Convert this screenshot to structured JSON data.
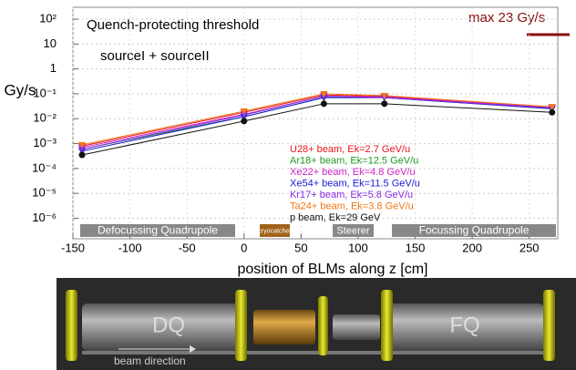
{
  "chart_data": {
    "type": "line",
    "title": "Quench-protecting threshold",
    "subtitle": "sourceI + sourceII",
    "annotation": "max 23 Gy/s",
    "x_label": "position of BLMs along z [cm]",
    "y_label": "Gy/s",
    "log_y": true,
    "grid": true,
    "legend_position": "center",
    "x": [
      -142,
      0,
      70,
      123,
      270
    ],
    "xlim": [
      -150,
      275
    ],
    "xticks": [
      {
        "value": -150,
        "label": "-150"
      },
      {
        "value": -100,
        "label": "-100"
      },
      {
        "value": -50,
        "label": "-50"
      },
      0,
      50,
      100,
      150,
      200,
      250
    ],
    "ylim": [
      1.5e-07,
      300
    ],
    "yticks": [
      {
        "value": 1e-06,
        "label": "10⁻⁶"
      },
      {
        "value": 1e-05,
        "label": "10⁻⁵"
      },
      {
        "value": 0.0001,
        "label": "10⁻⁴"
      },
      {
        "value": 0.001,
        "label": "10⁻³"
      },
      {
        "value": 0.01,
        "label": "10⁻²"
      },
      {
        "value": 0.1,
        "label": "10⁻¹"
      },
      1,
      10,
      {
        "value": 100,
        "label": "10²"
      }
    ],
    "series": [
      {
        "name": "U28+ beam, Ek=2.7 GeV/u",
        "color": "#e8141e",
        "marker": "triangle",
        "values": [
          0.0008,
          0.018,
          0.09,
          0.08,
          0.03
        ]
      },
      {
        "name": "Ar18+ beam, Ek=12.5 GeV/u",
        "color": "#1f9a1f",
        "marker": "triangle",
        "values": [
          0.0006,
          0.012,
          0.07,
          0.07,
          0.025
        ]
      },
      {
        "name": "Xe22+ beam, Ek=4.8 GeV/u",
        "color": "#d01fc8",
        "marker": "triangle",
        "values": [
          0.0007,
          0.015,
          0.08,
          0.075,
          0.028
        ]
      },
      {
        "name": "Xe54+ beam, Ek=11.5 GeV/u",
        "color": "#1a1ad8",
        "marker": "triangle",
        "values": [
          0.0005,
          0.012,
          0.07,
          0.07,
          0.025
        ]
      },
      {
        "name": "Kr17+ beam, Ek=5.8 GeV/u",
        "color": "#8a2be2",
        "marker": "triangle",
        "values": [
          0.0006,
          0.014,
          0.08,
          0.07,
          0.027
        ]
      },
      {
        "name": "Ta24+ beam, Ek=3.8 GeV/u",
        "color": "#f07818",
        "marker": "triangle",
        "values": [
          0.0009,
          0.02,
          0.1,
          0.085,
          0.03
        ]
      },
      {
        "name": "p beam, Ek=29 GeV",
        "color": "#111111",
        "marker": "circle",
        "values": [
          0.00035,
          0.008,
          0.04,
          0.04,
          0.018
        ]
      }
    ],
    "elements": [
      "Defocussing Quadrupole",
      "cryocatcher",
      "Steerer",
      "Focussing Quadrupole"
    ],
    "magnet_labels": [
      "DQ",
      "FQ"
    ],
    "beam_label": "beam direction"
  }
}
